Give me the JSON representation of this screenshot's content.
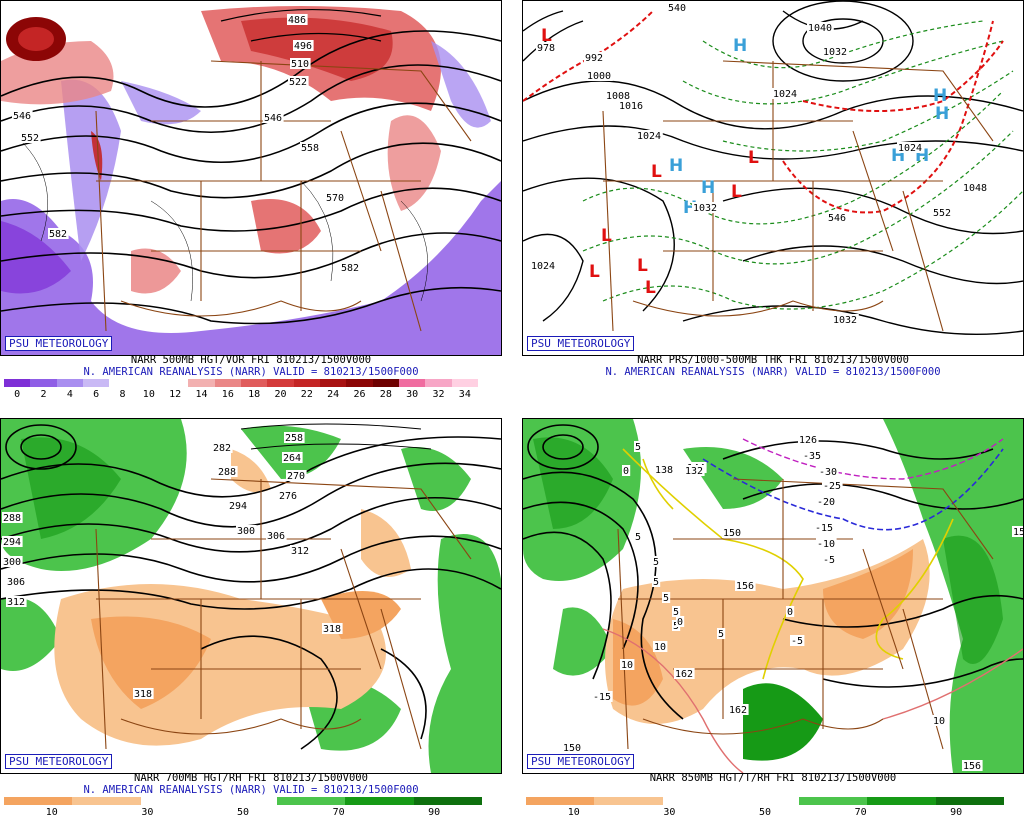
{
  "panels": [
    {
      "id": "p500",
      "badge": "PSU METEOROLOGY",
      "title_line1": "NARR 500MB HGT/VOR FRI 810213/1500V000",
      "title_line2": "N. AMERICAN REANALYSIS (NARR) VALID = 810213/1500F000",
      "colorbar_ticks": [
        "0",
        "2",
        "4",
        "6",
        "8",
        "10",
        "12",
        "14",
        "16",
        "18",
        "20",
        "22",
        "24",
        "26",
        "28",
        "30",
        "32",
        "34"
      ],
      "contour_labels": [
        "486",
        "496",
        "510",
        "522",
        "546",
        "546",
        "552",
        "558",
        "570",
        "582",
        "582"
      ]
    },
    {
      "id": "pprs",
      "badge": "PSU METEOROLOGY",
      "title_line1": "NARR PRS/1000-500MB THK FRI 810213/1500V000",
      "title_line2": "N. AMERICAN REANALYSIS (NARR) VALID = 810213/1500F000",
      "contour_labels": [
        "978",
        "992",
        "1000",
        "1008",
        "1016",
        "1024",
        "1024",
        "1032",
        "1040",
        "1032",
        "1024",
        "1024",
        "1032",
        "540",
        "546",
        "1048",
        "552"
      ],
      "high_symbol": "H",
      "low_symbol": "L"
    },
    {
      "id": "p700",
      "badge": "PSU METEOROLOGY",
      "title_line1": "NARR 700MB HGT/RH FRI 810213/1500V000",
      "title_line2": "N. AMERICAN REANALYSIS (NARR) VALID = 810213/1500F000",
      "colorbar_ticks": [
        "10",
        "30",
        "50",
        "70",
        "90"
      ],
      "contour_labels": [
        "258",
        "264",
        "270",
        "276",
        "282",
        "288",
        "294",
        "300",
        "306",
        "312",
        "318",
        "318",
        "288",
        "294",
        "300",
        "306",
        "312"
      ]
    },
    {
      "id": "p850",
      "badge": "PSU METEOROLOGY",
      "title_line1": "NARR 850MB HGT/T/RH FRI 810213/1500V000",
      "title_line2": "",
      "colorbar_ticks": [
        "10",
        "30",
        "50",
        "70",
        "90"
      ],
      "contour_labels": [
        "126",
        "138",
        "144",
        "150",
        "156",
        "162",
        "162",
        "156",
        "150",
        "132",
        "-35",
        "-30",
        "-25",
        "-20",
        "-15",
        "-10",
        "-5",
        "-5",
        "5",
        "5",
        "5",
        "5",
        "5",
        "5",
        "5",
        "5",
        "0",
        "0",
        "0",
        "10",
        "10",
        "10",
        "-15",
        "15"
      ]
    }
  ],
  "colors": {
    "vort_scale": [
      "#7e2fd6",
      "#8f5ee6",
      "#a98ef0",
      "#c9b9f5",
      "#ffffff",
      "#ffffff",
      "#ffffff",
      "#f2b0b0",
      "#ea8686",
      "#e05c5c",
      "#d43a3a",
      "#c42525",
      "#a81212",
      "#8c0606",
      "#6e0000",
      "#f06ca0",
      "#f7a6c6",
      "#ffd0e2"
    ],
    "rh_scale": [
      "#f4a460",
      "#f8c490",
      "#ffffff",
      "#ffffff",
      "#4cc44c",
      "#169a16",
      "#0e700e"
    ],
    "brown": "#8b4513",
    "title_blue": "#1b1bb8",
    "high_blue": "#3aa0d8",
    "low_red": "#e01010"
  }
}
